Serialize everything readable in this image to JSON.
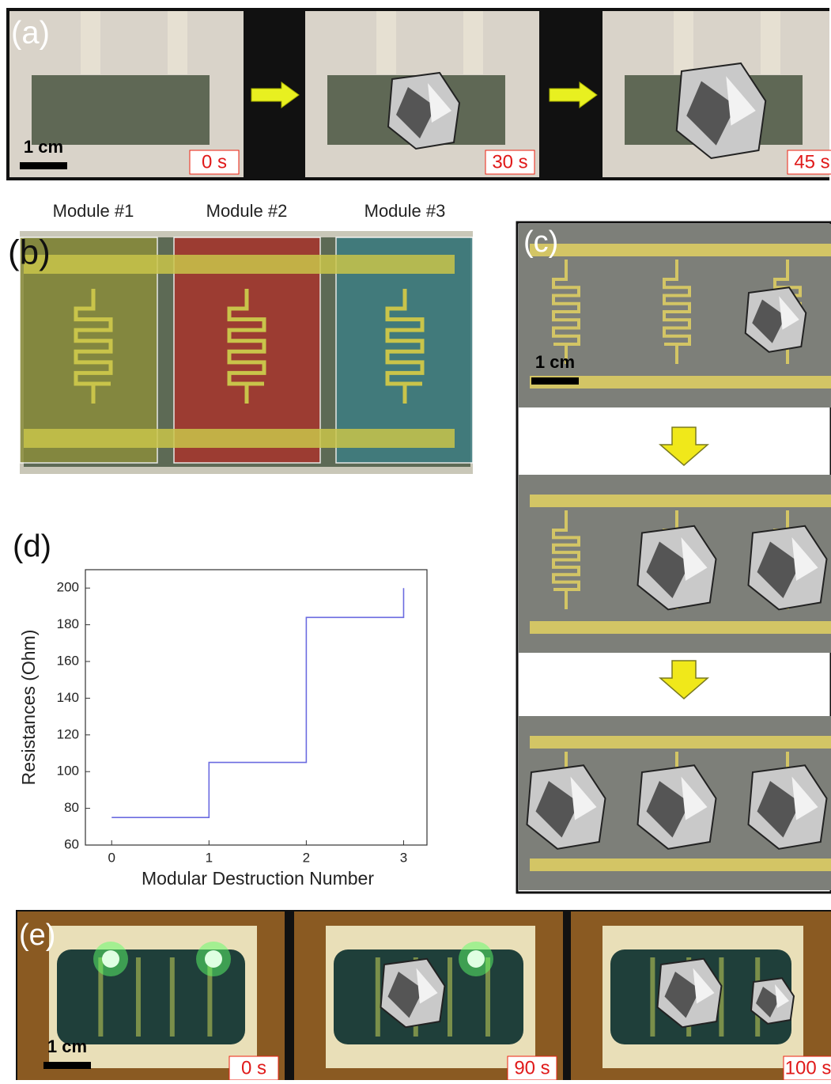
{
  "panels": {
    "a": {
      "label": "(a)",
      "scale": "1 cm",
      "times": [
        "0 s",
        "30 s",
        "45 s"
      ]
    },
    "b": {
      "label": "(b)",
      "modules": [
        "Module #1",
        "Module #2",
        "Module #3"
      ]
    },
    "c": {
      "label": "(c)",
      "scale": "1 cm"
    },
    "d": {
      "label": "(d)"
    },
    "e": {
      "label": "(e)",
      "scale": "1 cm",
      "times": [
        "0 s",
        "90 s",
        "100 s"
      ]
    }
  },
  "chart_data": {
    "type": "line",
    "x_label": "Modular Destruction Number",
    "y_label": "Resistances (Ohm)",
    "x": [
      0,
      1,
      1,
      2,
      2,
      3,
      3
    ],
    "values": [
      75,
      75,
      105,
      105,
      184,
      184,
      200
    ],
    "color": "#6b6be0",
    "xlim": [
      -0.27,
      3.24
    ],
    "ylim": [
      60,
      210
    ],
    "xticks": [
      0,
      1,
      2,
      3
    ],
    "yticks": [
      60,
      80,
      100,
      120,
      140,
      160,
      180,
      200
    ]
  }
}
